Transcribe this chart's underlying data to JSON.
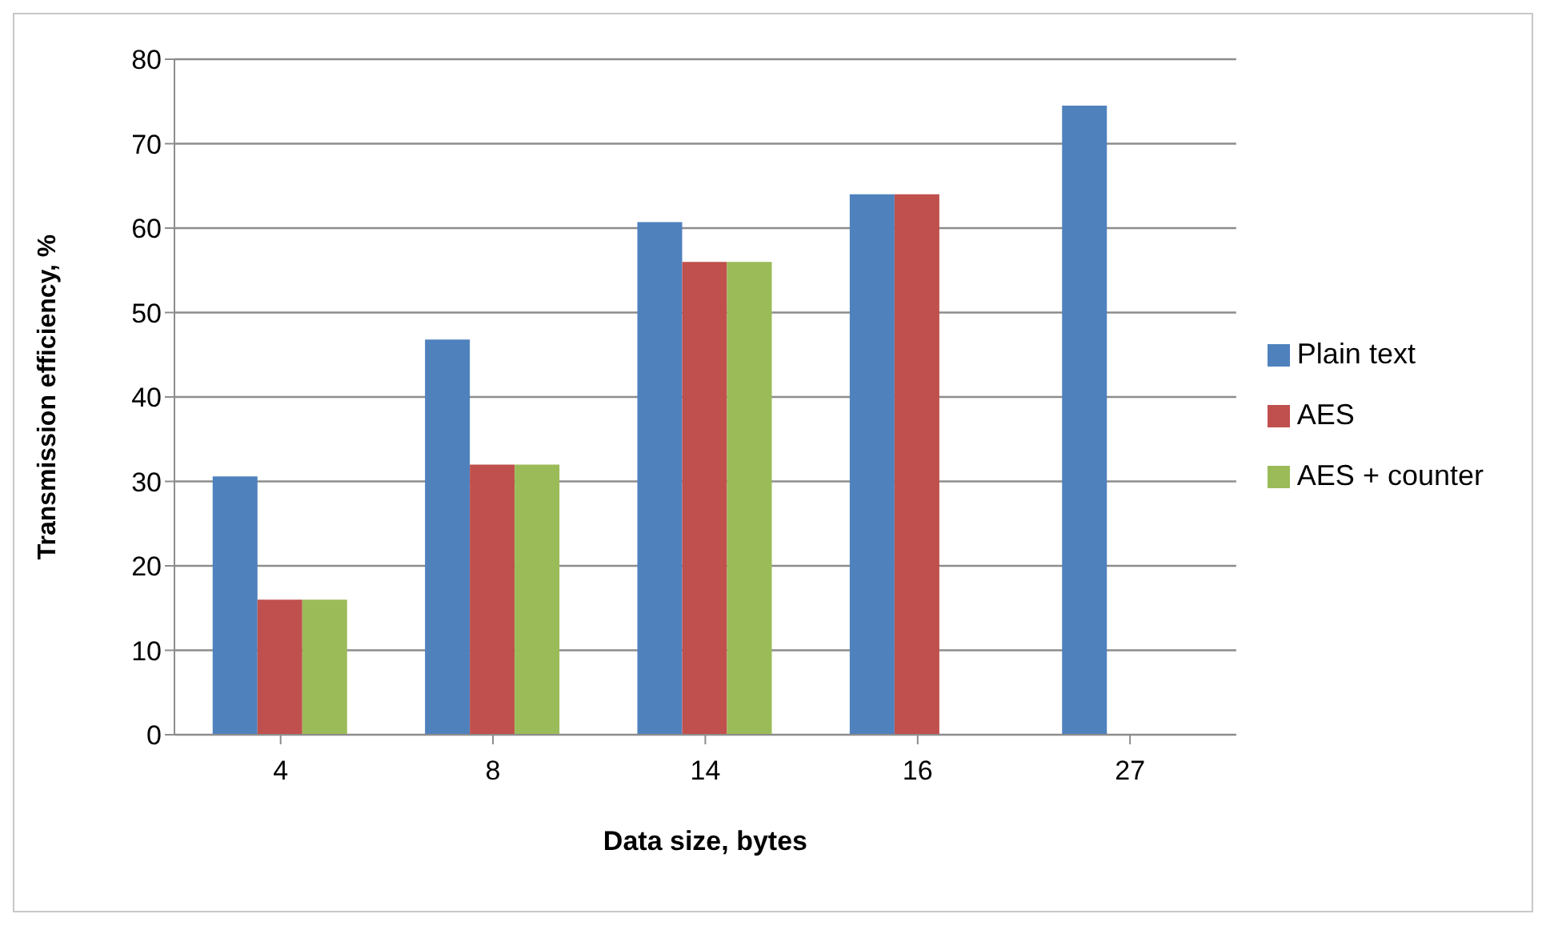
{
  "chart_data": {
    "type": "bar",
    "xlabel": "Data size, bytes",
    "ylabel": "Transmission  efficiency, %",
    "categories": [
      "4",
      "8",
      "14",
      "16",
      "27"
    ],
    "series": [
      {
        "name": "Plain text",
        "color": "#4f81bd",
        "values": [
          30.6,
          46.8,
          60.7,
          64,
          74.5
        ]
      },
      {
        "name": "AES",
        "color": "#c0504d",
        "values": [
          16,
          32,
          56,
          64,
          null
        ]
      },
      {
        "name": "AES + counter",
        "color": "#9bbb59",
        "values": [
          16,
          32,
          56,
          null,
          null
        ]
      }
    ],
    "ylim": [
      0,
      80
    ],
    "yticks": [
      0,
      10,
      20,
      30,
      40,
      50,
      60,
      70,
      80
    ],
    "grid": "y",
    "legend": "right"
  }
}
